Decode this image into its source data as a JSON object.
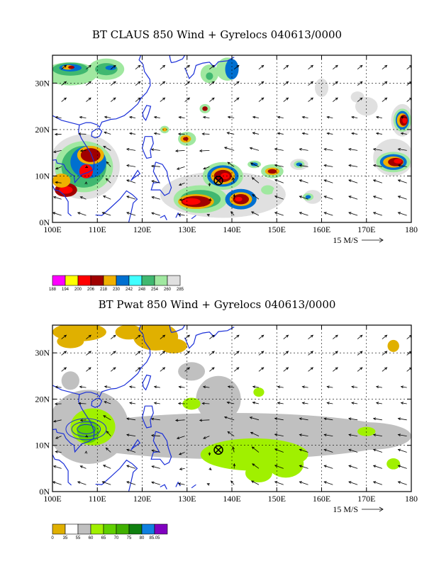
{
  "panels": [
    {
      "title": "BT CLAUS 850 Wind + Gyrelocs 040613/0000",
      "colorbar": {
        "colors": [
          "#ff00ff",
          "#ffff00",
          "#ff0000",
          "#a00000",
          "#f0b000",
          "#0070d0",
          "#40ffff",
          "#40b870",
          "#a0e8a0",
          "#e0e0e0"
        ],
        "labels": [
          "188",
          "194",
          "200",
          "206",
          "218",
          "230",
          "242",
          "248",
          "254",
          "260",
          "285"
        ]
      }
    },
    {
      "title": "BT Pwat 850 Wind + Gyrelocs 040613/0000",
      "colorbar": {
        "colors": [
          "#e0b000",
          "#ffffff",
          "#c0c0c0",
          "#a0f000",
          "#60d000",
          "#40b000",
          "#108010",
          "#1080e0",
          "#8000c0"
        ],
        "labels": [
          "0",
          "35",
          "55",
          "60",
          "65",
          "70",
          "75",
          "80",
          "85.05"
        ]
      }
    }
  ],
  "axes": {
    "x_ticks": [
      "100E",
      "110E",
      "120E",
      "130E",
      "140E",
      "150E",
      "160E",
      "170E",
      "180"
    ],
    "y_ticks": [
      "0N",
      "10N",
      "20N",
      "30N"
    ],
    "lon_range": [
      100,
      180
    ],
    "lat_range": [
      0,
      36
    ]
  },
  "vector_scale_label": "15 M/S",
  "gyre_location": {
    "lon": 137,
    "lat": 9
  },
  "map_colors": {
    "coast": "#1a2fd8",
    "grid": "#000000"
  }
}
